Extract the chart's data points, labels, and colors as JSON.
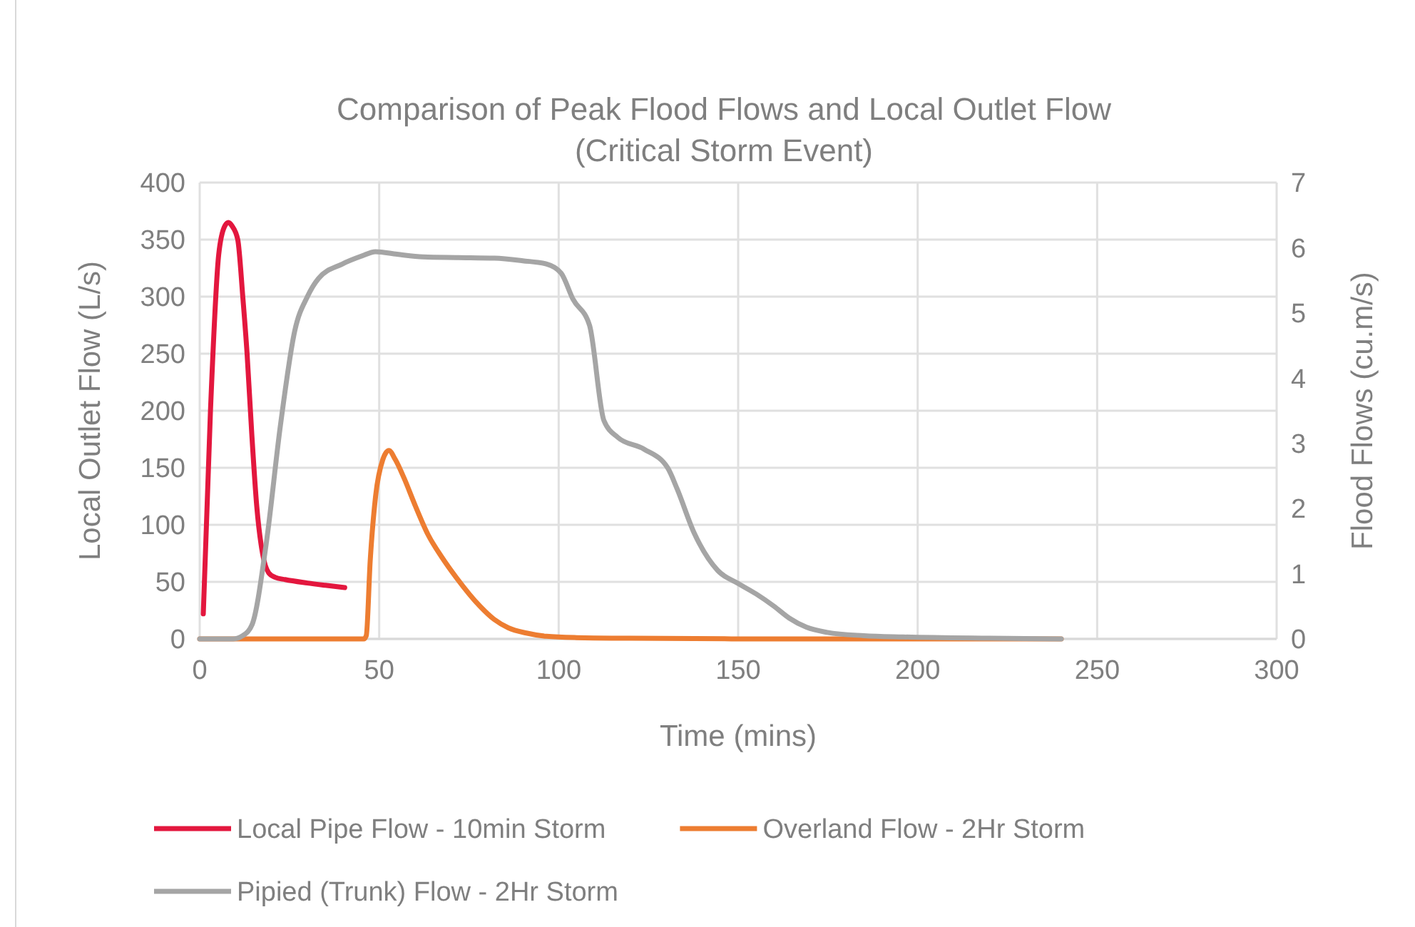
{
  "chart_data": {
    "type": "line",
    "title": "Comparison of Peak Flood Flows and Local Outlet Flow\n(Critical Storm Event)",
    "xlabel": "Time (mins)",
    "ylabel": "Local Outlet Flow (L/s)",
    "y2label": "Flood Flows (cu.m/s)",
    "xlim": [
      0,
      300
    ],
    "xticks": [
      0,
      50,
      100,
      150,
      200,
      250,
      300
    ],
    "ylim": [
      0,
      400
    ],
    "yticks": [
      0,
      50,
      100,
      150,
      200,
      250,
      300,
      350,
      400
    ],
    "y2lim": [
      0,
      7
    ],
    "y2ticks": [
      0,
      1,
      2,
      3,
      4,
      5,
      6,
      7
    ],
    "grid": true,
    "legend": "bottom",
    "marker": "none",
    "line_style": "solid",
    "series": [
      {
        "name": "Local Pipe Flow - 10min Storm",
        "color": "#e3173e",
        "x": [
          1,
          3,
          5.3,
          7,
          8,
          9,
          10.6,
          12,
          13.2,
          14.5,
          15.9,
          17.5,
          19.2,
          21,
          23.8,
          30,
          35,
          40.4
        ],
        "values": [
          22,
          200,
          337,
          362,
          365,
          362,
          350,
          300,
          250,
          180,
          116,
          75,
          58,
          54,
          52,
          49,
          47,
          45
        ]
      },
      {
        "name": "Overland Flow - 2Hr Storm",
        "color": "#ed7d31",
        "axis": "y2",
        "x": [
          0,
          45.7,
          46.4,
          47.5,
          49,
          51,
          52.7,
          54.5,
          56.9,
          60,
          63.6,
          67.5,
          71.5,
          78.1,
          82,
          86,
          91,
          96.6,
          105,
          120,
          160,
          200,
          240
        ],
        "values": [
          0,
          0,
          0.05,
          1.2,
          2.19,
          2.75,
          2.89,
          2.75,
          2.47,
          2.05,
          1.6,
          1.25,
          0.94,
          0.5,
          0.3,
          0.17,
          0.09,
          0.04,
          0.02,
          0.01,
          0,
          0,
          0
        ]
      },
      {
        "name": "Pipied (Trunk) Flow - 2Hr Storm",
        "color": "#a5a5a5",
        "axis": "y2",
        "x": [
          0,
          9.3,
          12,
          14.6,
          18.5,
          22.5,
          26.5,
          30,
          33.1,
          39.7,
          45,
          49,
          55,
          62.3,
          72,
          82.1,
          90,
          96.7,
          100.7,
          104,
          108.6,
          112.6,
          116.5,
          123.8,
          130.4,
          133,
          137.7,
          144.3,
          150,
          155,
          160,
          164.2,
          169,
          174.8,
          185,
          196,
          220,
          240
        ],
        "values": [
          0,
          0,
          0.05,
          0.22,
          1.45,
          3.28,
          4.73,
          5.25,
          5.53,
          5.75,
          5.87,
          5.94,
          5.9,
          5.86,
          5.85,
          5.84,
          5.8,
          5.75,
          5.61,
          5.21,
          4.81,
          3.35,
          3.09,
          2.91,
          2.62,
          2.3,
          1.63,
          1.05,
          0.85,
          0.69,
          0.5,
          0.32,
          0.18,
          0.1,
          0.05,
          0.03,
          0.01,
          0
        ]
      }
    ]
  }
}
